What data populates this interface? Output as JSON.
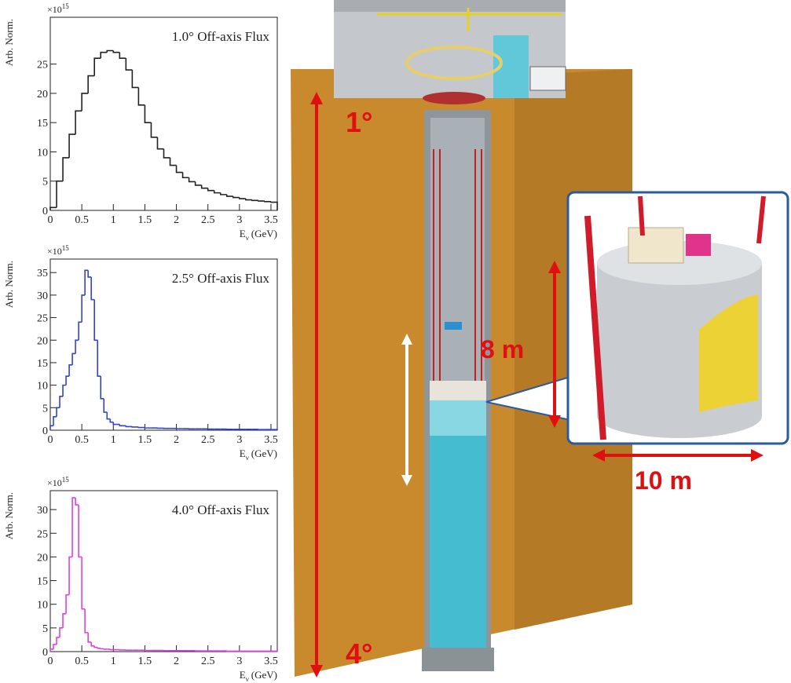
{
  "chart_data": [
    {
      "type": "histogram",
      "title": "1.0° Off-axis Flux",
      "y_label": "Arb. Norm.",
      "y_multiplier": {
        "base": "×10",
        "exponent": "15"
      },
      "x_label": {
        "main": "E",
        "subscript": "ν",
        "unit": "(GeV)"
      },
      "color": "#222222",
      "bins": [
        0,
        0.1,
        0.2,
        0.3,
        0.4,
        0.5,
        0.6,
        0.7,
        0.8,
        0.9,
        1,
        1.1,
        1.2,
        1.3,
        1.4,
        1.5,
        1.6,
        1.7,
        1.8,
        1.9,
        2,
        2.1,
        2.2,
        2.3,
        2.4,
        2.5,
        2.6,
        2.7,
        2.8,
        2.9,
        3,
        3.1,
        3.2,
        3.3,
        3.4,
        3.5,
        3.6
      ],
      "values": [
        0.5,
        5,
        9,
        13,
        17,
        20,
        23,
        26,
        27,
        27.3,
        27,
        26,
        24,
        21,
        18,
        15,
        12.5,
        10.5,
        9,
        7.7,
        6.5,
        5.6,
        4.9,
        4.3,
        3.8,
        3.4,
        3,
        2.7,
        2.4,
        2.2,
        2,
        1.8,
        1.7,
        1.6,
        1.5,
        1.4
      ],
      "xlim": [
        0,
        3.6
      ],
      "xticks": [
        0,
        0.5,
        1,
        1.5,
        2,
        2.5,
        3,
        3.5
      ],
      "ylim": [
        0,
        33
      ],
      "yticks": [
        0,
        5,
        10,
        15,
        20,
        25
      ]
    },
    {
      "type": "histogram",
      "title": "2.5° Off-axis Flux",
      "y_label": "Arb. Norm.",
      "y_multiplier": {
        "base": "×10",
        "exponent": "15"
      },
      "x_label": {
        "main": "E",
        "subscript": "ν",
        "unit": "(GeV)"
      },
      "color": "#3344cc",
      "bins": [
        0,
        0.05,
        0.1,
        0.15,
        0.2,
        0.25,
        0.3,
        0.35,
        0.4,
        0.45,
        0.5,
        0.55,
        0.6,
        0.65,
        0.7,
        0.75,
        0.8,
        0.85,
        0.9,
        0.95,
        1,
        1.1,
        1.2,
        1.3,
        1.4,
        1.5,
        1.6,
        1.7,
        1.8,
        1.9,
        2,
        2.1,
        2.2,
        2.3,
        2.4,
        2.5,
        2.6,
        2.7,
        2.8,
        2.9,
        3,
        3.1,
        3.2,
        3.3,
        3.4,
        3.5,
        3.6
      ],
      "values": [
        1,
        3,
        5,
        7.5,
        10,
        12,
        14.5,
        17,
        20,
        24,
        30,
        35.5,
        34,
        29,
        20,
        12,
        7,
        4,
        2.5,
        1.8,
        1.3,
        1,
        0.8,
        0.7,
        0.6,
        0.5,
        0.5,
        0.45,
        0.4,
        0.4,
        0.35,
        0.35,
        0.3,
        0.3,
        0.3,
        0.25,
        0.25,
        0.25,
        0.2,
        0.2,
        0.2,
        0.2,
        0.2,
        0.15,
        0.15,
        0.15
      ],
      "xlim": [
        0,
        3.6
      ],
      "xticks": [
        0,
        0.5,
        1,
        1.5,
        2,
        2.5,
        3,
        3.5
      ],
      "ylim": [
        0,
        38
      ],
      "yticks": [
        0,
        5,
        10,
        15,
        20,
        25,
        30,
        35
      ]
    },
    {
      "type": "histogram",
      "title": "4.0° Off-axis Flux",
      "y_label": "Arb. Norm.",
      "y_multiplier": {
        "base": "×10",
        "exponent": "15"
      },
      "x_label": {
        "main": "E",
        "subscript": "ν",
        "unit": "(GeV)"
      },
      "color": "#e040e0",
      "bins": [
        0,
        0.05,
        0.1,
        0.15,
        0.2,
        0.25,
        0.3,
        0.35,
        0.4,
        0.45,
        0.5,
        0.55,
        0.6,
        0.65,
        0.7,
        0.75,
        0.8,
        0.85,
        0.9,
        0.95,
        1,
        1.1,
        1.2,
        1.3,
        1.4,
        1.5,
        1.6,
        1.7,
        1.8,
        1.9,
        2,
        2.1,
        2.2,
        2.3,
        2.4,
        2.5,
        2.6,
        2.7,
        2.8,
        2.9,
        3,
        3.1,
        3.2,
        3.3,
        3.4,
        3.5,
        3.6
      ],
      "values": [
        0.5,
        1.5,
        3,
        5,
        8,
        12,
        20,
        32.5,
        31,
        20,
        9,
        4,
        2,
        1.2,
        0.9,
        0.7,
        0.6,
        0.5,
        0.5,
        0.4,
        0.4,
        0.35,
        0.3,
        0.3,
        0.3,
        0.25,
        0.25,
        0.25,
        0.2,
        0.2,
        0.2,
        0.2,
        0.2,
        0.15,
        0.15,
        0.15,
        0.15,
        0.15,
        0.1,
        0.1,
        0.1,
        0.1,
        0.1,
        0.1,
        0.1,
        0.1
      ],
      "xlim": [
        0,
        3.6
      ],
      "xticks": [
        0,
        0.5,
        1,
        1.5,
        2,
        2.5,
        3,
        3.5
      ],
      "ylim": [
        0,
        34
      ],
      "yticks": [
        0,
        5,
        10,
        15,
        20,
        25,
        30
      ]
    }
  ],
  "diagram": {
    "top_angle": "1°",
    "bottom_angle": "4°",
    "height": "8 m",
    "diameter": "10 m"
  }
}
